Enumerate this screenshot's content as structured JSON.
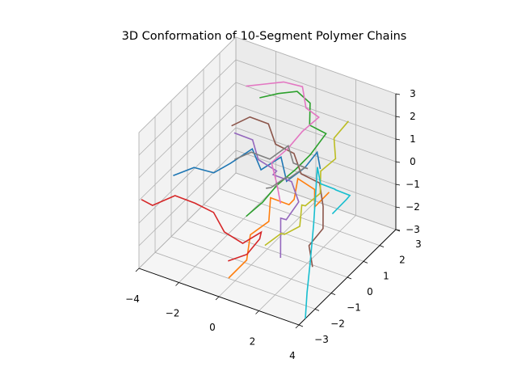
{
  "chart_data": {
    "type": "line3d",
    "title": "3D Conformation of 10-Segment Polymer Chains",
    "xlim": [
      -4,
      4
    ],
    "ylim": [
      -3,
      3
    ],
    "zlim": [
      -3,
      3
    ],
    "x_ticks": [
      -4,
      -2,
      0,
      2,
      4
    ],
    "y_ticks": [
      -3,
      -2,
      -1,
      0,
      1,
      2,
      3
    ],
    "z_ticks": [
      -3,
      -2,
      -1,
      0,
      1,
      2,
      3
    ],
    "grid": true,
    "colors": [
      "#1f77b4",
      "#ff7f0e",
      "#2ca02c",
      "#d62728",
      "#9467bd",
      "#8c564b",
      "#e377c2",
      "#7f7f7f",
      "#bcbd22",
      "#17becf"
    ],
    "series": [
      {
        "color": "#1f77b4",
        "points": [
          [
            -3.5,
            -1.5,
            0.2
          ],
          [
            -2.7,
            -1.2,
            0.6
          ],
          [
            -2.2,
            -0.6,
            0.1
          ],
          [
            -1.6,
            -0.3,
            0.5
          ],
          [
            -1.0,
            0.3,
            0.9
          ],
          [
            -0.4,
            0.1,
            0.3
          ],
          [
            0.2,
            0.6,
            0.7
          ],
          [
            0.8,
            0.2,
            0.1
          ],
          [
            1.3,
            0.7,
            0.5
          ],
          [
            1.6,
            1.1,
            1.0
          ],
          [
            2.0,
            0.8,
            0.6
          ]
        ]
      },
      {
        "color": "#ff7f0e",
        "points": [
          [
            0.0,
            -2.4,
            -2.6
          ],
          [
            0.5,
            -1.9,
            -2.0
          ],
          [
            0.2,
            -1.3,
            -1.4
          ],
          [
            0.8,
            -0.9,
            -0.9
          ],
          [
            0.4,
            -0.3,
            -0.4
          ],
          [
            1.0,
            0.1,
            -0.8
          ],
          [
            1.5,
            -0.2,
            -0.2
          ],
          [
            1.2,
            0.4,
            0.2
          ],
          [
            1.8,
            0.7,
            -0.3
          ],
          [
            2.2,
            0.2,
            -0.6
          ],
          [
            2.6,
            0.6,
            -0.1
          ]
        ]
      },
      {
        "color": "#2ca02c",
        "points": [
          [
            -1.2,
            1.0,
            2.6
          ],
          [
            -0.5,
            1.3,
            2.8
          ],
          [
            0.2,
            1.6,
            2.9
          ],
          [
            0.6,
            1.9,
            2.3
          ],
          [
            0.9,
            1.5,
            1.7
          ],
          [
            1.4,
            1.9,
            1.2
          ],
          [
            1.1,
            1.3,
            0.6
          ],
          [
            0.6,
            1.0,
            0.0
          ],
          [
            0.0,
            0.6,
            -0.6
          ],
          [
            -0.4,
            0.2,
            -1.2
          ],
          [
            -0.9,
            -0.2,
            -1.7
          ]
        ]
      },
      {
        "color": "#d62728",
        "points": [
          [
            -4.2,
            -2.6,
            -0.3
          ],
          [
            -3.4,
            -2.9,
            -0.1
          ],
          [
            -2.6,
            -2.5,
            0.3
          ],
          [
            -2.0,
            -2.0,
            -0.2
          ],
          [
            -1.4,
            -1.6,
            -0.7
          ],
          [
            -0.7,
            -1.8,
            -1.2
          ],
          [
            -0.1,
            -1.4,
            -1.8
          ],
          [
            0.5,
            -1.0,
            -1.4
          ],
          [
            0.1,
            -0.6,
            -2.1
          ],
          [
            -0.3,
            -0.9,
            -2.7
          ],
          [
            -1.0,
            -1.2,
            -3.0
          ]
        ]
      },
      {
        "color": "#9467bd",
        "points": [
          [
            -1.5,
            -0.2,
            1.8
          ],
          [
            -0.9,
            0.2,
            1.4
          ],
          [
            -0.3,
            -0.2,
            1.0
          ],
          [
            0.3,
            0.2,
            0.4
          ],
          [
            -0.2,
            0.6,
            -0.2
          ],
          [
            0.4,
            1.0,
            -0.6
          ],
          [
            1.0,
            0.7,
            -1.1
          ],
          [
            0.7,
            0.3,
            -1.7
          ],
          [
            0.1,
            0.7,
            -2.1
          ],
          [
            0.5,
            0.2,
            -2.6
          ],
          [
            0.9,
            -0.3,
            -2.9
          ]
        ]
      },
      {
        "color": "#8c564b",
        "points": [
          [
            -2.2,
            0.5,
            1.4
          ],
          [
            -1.6,
            0.9,
            1.7
          ],
          [
            -1.0,
            1.3,
            1.3
          ],
          [
            -0.4,
            1.0,
            0.8
          ],
          [
            0.2,
            1.4,
            0.3
          ],
          [
            0.8,
            1.1,
            -0.2
          ],
          [
            1.4,
            1.5,
            -0.7
          ],
          [
            1.9,
            1.1,
            -1.3
          ],
          [
            2.3,
            0.6,
            -1.8
          ],
          [
            2.0,
            0.1,
            -2.3
          ],
          [
            2.5,
            -0.3,
            -2.8
          ]
        ]
      },
      {
        "color": "#e377c2",
        "points": [
          [
            -1.8,
            0.9,
            3.0
          ],
          [
            -1.1,
            1.2,
            3.1
          ],
          [
            -0.4,
            1.5,
            3.2
          ],
          [
            0.3,
            1.8,
            3.0
          ],
          [
            0.8,
            1.4,
            2.5
          ],
          [
            1.2,
            1.7,
            2.0
          ],
          [
            0.7,
            1.3,
            1.5
          ],
          [
            0.3,
            0.9,
            0.9
          ],
          [
            -0.2,
            0.5,
            0.4
          ],
          [
            0.4,
            0.1,
            -0.1
          ],
          [
            0.9,
            -0.3,
            -0.5
          ]
        ]
      },
      {
        "color": "#7f7f7f",
        "points": [
          [
            -1.0,
            -0.8,
            1.2
          ],
          [
            -0.4,
            -0.5,
            1.5
          ],
          [
            0.2,
            -0.1,
            1.1
          ],
          [
            0.8,
            0.3,
            1.6
          ],
          [
            1.3,
            0.0,
            1.2
          ],
          [
            1.7,
            0.4,
            0.8
          ],
          [
            1.2,
            0.8,
            0.4
          ],
          [
            0.7,
            0.5,
            0.0
          ],
          [
            0.2,
            0.9,
            -0.4
          ],
          [
            -0.3,
            0.6,
            -0.8
          ],
          [
            -0.8,
            0.9,
            -1.2
          ]
        ]
      },
      {
        "color": "#bcbd22",
        "points": [
          [
            2.6,
            1.8,
            2.2
          ],
          [
            2.2,
            1.4,
            1.6
          ],
          [
            2.6,
            1.0,
            1.1
          ],
          [
            2.1,
            0.7,
            0.6
          ],
          [
            2.4,
            0.3,
            0.0
          ],
          [
            1.9,
            0.0,
            -0.5
          ],
          [
            1.4,
            0.4,
            -0.9
          ],
          [
            1.7,
            -0.1,
            -1.4
          ],
          [
            1.1,
            -0.3,
            -1.8
          ],
          [
            0.6,
            0.1,
            -2.2
          ],
          [
            0.2,
            -0.4,
            -2.5
          ]
        ]
      },
      {
        "color": "#17becf",
        "points": [
          [
            2.6,
            0.8,
            -1.2
          ],
          [
            3.0,
            1.2,
            -0.7
          ],
          [
            3.4,
            0.9,
            -0.2
          ],
          [
            3.0,
            0.5,
            0.2
          ],
          [
            3.3,
            0.1,
            0.6
          ],
          [
            2.9,
            -0.3,
            1.0
          ],
          [
            2.5,
            0.0,
            1.4
          ],
          [
            2.8,
            -0.6,
            -0.6
          ],
          [
            3.2,
            -1.3,
            -1.6
          ],
          [
            3.6,
            -2.0,
            -2.4
          ],
          [
            4.0,
            -2.6,
            -3.0
          ]
        ]
      }
    ]
  }
}
